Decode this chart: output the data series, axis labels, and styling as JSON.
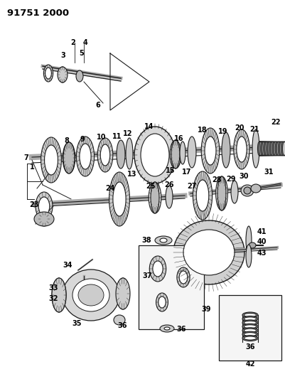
{
  "title": "91751 2000",
  "bg_color": "#ffffff",
  "fig_width": 4.02,
  "fig_height": 5.33,
  "dpi": 100,
  "line_color": "#1a1a1a",
  "label_fontsize": 7.0,
  "title_fontsize": 9.5
}
